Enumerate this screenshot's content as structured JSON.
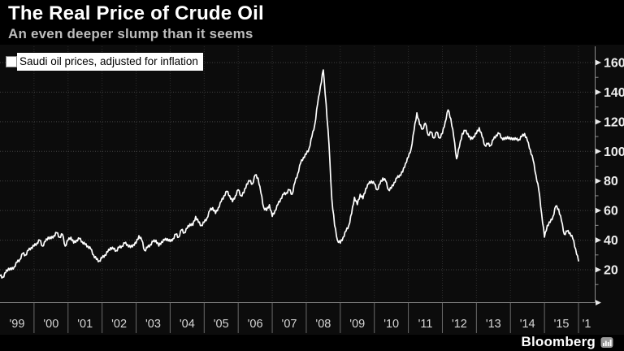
{
  "header": {
    "title": "The Real Price of Crude Oil",
    "subtitle": "An even deeper slump than it seems"
  },
  "legend": {
    "label": "Saudi oil prices, adjusted for inflation"
  },
  "footer": {
    "brand": "Bloomberg"
  },
  "colors": {
    "page_bg": "#000000",
    "plot_bg": "#0c0c0c",
    "line": "#ffffff",
    "grid_h": "#414141",
    "grid_v": "#2d2d2d",
    "axis": "#8c8c8c",
    "tick_label": "#ededed",
    "tick_arrow": "#e8e8e8",
    "axis_label": "#d6d6d6",
    "separator": "#6a6a6a",
    "legend_bg": "#ffffff",
    "legend_text": "#000000",
    "brand_icon": "#9b9b9b"
  },
  "chart_data": {
    "type": "line",
    "title": "The Real Price of Crude Oil",
    "subtitle": "An even deeper slump than it seems",
    "series_name": "Saudi oil prices, adjusted for inflation",
    "x_start": "1999-01",
    "x_end": "2016-01",
    "x_interval": "monthly",
    "x_tick_labels": [
      "'99",
      "'00",
      "'01",
      "'02",
      "'03",
      "'04",
      "'05",
      "'06",
      "'07",
      "'08",
      "'09",
      "'10",
      "'11",
      "'12",
      "'13",
      "'14",
      "'15",
      "'1"
    ],
    "y_ticks": [
      20,
      40,
      60,
      80,
      100,
      120,
      140,
      160
    ],
    "y_minor_ticks": [
      10,
      30,
      50,
      70,
      90,
      110,
      130,
      150
    ],
    "ylim": [
      10,
      168
    ],
    "grid": "dotted",
    "legend_position": "top-left",
    "values": [
      16,
      15,
      18,
      21,
      20,
      22,
      25,
      27,
      31,
      30,
      33,
      35,
      36,
      38,
      40,
      36,
      39,
      42,
      41,
      43,
      45,
      42,
      44,
      36,
      40,
      42,
      38,
      40,
      41,
      39,
      37,
      36,
      34,
      30,
      27,
      26,
      28,
      30,
      32,
      35,
      34,
      33,
      35,
      36,
      38,
      37,
      35,
      37,
      38,
      43,
      40,
      33,
      35,
      37,
      39,
      40,
      36,
      39,
      40,
      41,
      39,
      41,
      44,
      42,
      47,
      45,
      48,
      51,
      50,
      56,
      52,
      50,
      52,
      55,
      60,
      62,
      58,
      62,
      66,
      70,
      73,
      70,
      66,
      70,
      74,
      70,
      72,
      78,
      80,
      78,
      84,
      82,
      72,
      62,
      60,
      64,
      56,
      60,
      64,
      68,
      71,
      72,
      74,
      71,
      79,
      85,
      92,
      96,
      98,
      102,
      110,
      118,
      132,
      144,
      155,
      132,
      105,
      68,
      50,
      40,
      38,
      42,
      46,
      50,
      58,
      69,
      64,
      71,
      68,
      75,
      78,
      80,
      78,
      74,
      78,
      82,
      80,
      74,
      75,
      79,
      82,
      84,
      86,
      92,
      96,
      102,
      114,
      126,
      118,
      115,
      119,
      111,
      113,
      109,
      113,
      109,
      112,
      120,
      128,
      122,
      110,
      95,
      103,
      112,
      114,
      112,
      108,
      110,
      112,
      116,
      110,
      104,
      105,
      104,
      108,
      111,
      112,
      109,
      108,
      110,
      108,
      109,
      108,
      108,
      110,
      112,
      107,
      101,
      94,
      84,
      74,
      58,
      42,
      50,
      52,
      56,
      63,
      61,
      53,
      44,
      46,
      45,
      41,
      34,
      26
    ]
  }
}
